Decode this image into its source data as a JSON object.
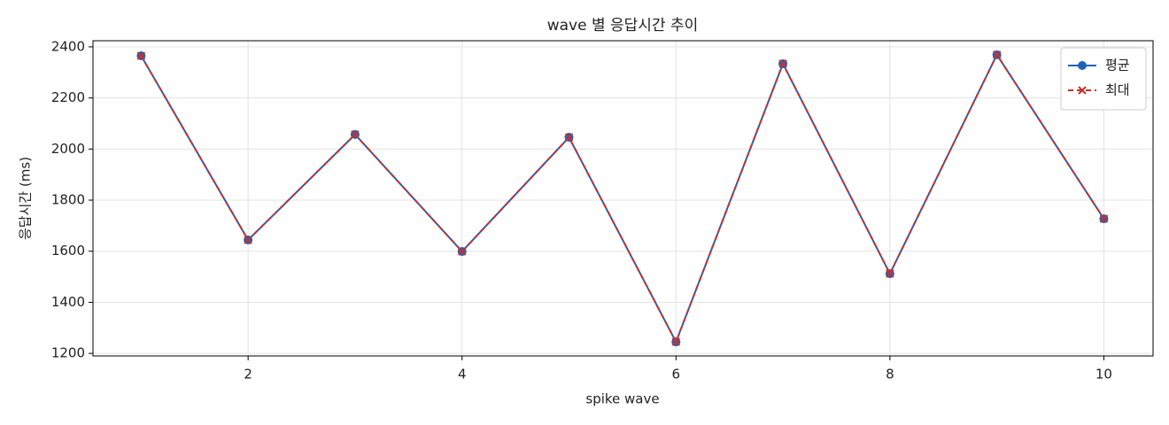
{
  "chart_data": {
    "type": "line",
    "title": "wave 별 응답시간 추이",
    "x_label": "spike wave",
    "y_label": "응답시간 (ms)",
    "x": [
      1,
      2,
      3,
      4,
      5,
      6,
      7,
      8,
      9,
      10
    ],
    "series": [
      {
        "name": "평균",
        "color": "#1f63b8",
        "marker": "o",
        "linestyle": "solid",
        "values": [
          2365,
          1644,
          2057,
          1599,
          2046,
          1245,
          2334,
          1512,
          2369,
          1727
        ]
      },
      {
        "name": "최대",
        "color": "#c9302c",
        "marker": "x",
        "linestyle": "dashed",
        "values": [
          2365,
          1644,
          2057,
          1599,
          2046,
          1245,
          2334,
          1512,
          2369,
          1727
        ]
      }
    ],
    "xlim": [
      0.55,
      10.46
    ],
    "ylim": [
      1190,
      2424
    ],
    "xticks": [
      2,
      4,
      6,
      8,
      10
    ],
    "yticks": [
      1200,
      1400,
      1600,
      1800,
      2000,
      2200,
      2400
    ],
    "grid": true,
    "legend": "upper right"
  }
}
